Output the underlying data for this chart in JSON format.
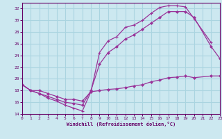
{
  "xlabel": "Windchill (Refroidissement éolien,°C)",
  "bg_color": "#cce8f0",
  "grid_color": "#aad4e0",
  "line_color": "#993399",
  "xlim": [
    0,
    23
  ],
  "ylim": [
    14,
    33
  ],
  "xticks": [
    0,
    1,
    2,
    3,
    4,
    5,
    6,
    7,
    8,
    9,
    10,
    11,
    12,
    13,
    14,
    15,
    16,
    17,
    18,
    19,
    20,
    21,
    22,
    23
  ],
  "yticks": [
    14,
    16,
    18,
    20,
    22,
    24,
    26,
    28,
    30,
    32
  ],
  "line1_x": [
    0,
    1,
    2,
    3,
    4,
    5,
    6,
    7,
    8,
    9,
    10,
    11,
    12,
    13,
    14,
    15,
    16,
    17,
    18,
    19,
    20,
    22
  ],
  "line1_y": [
    19.0,
    18.0,
    17.5,
    16.7,
    16.2,
    15.5,
    15.0,
    14.5,
    17.8,
    24.5,
    26.5,
    27.2,
    28.8,
    29.2,
    30.0,
    31.2,
    32.2,
    32.5,
    32.5,
    32.3,
    30.3,
    26.2
  ],
  "line2_x": [
    0,
    1,
    2,
    3,
    4,
    5,
    6,
    7,
    8,
    9,
    10,
    11,
    12,
    13,
    14,
    15,
    16,
    17,
    18,
    19,
    20,
    22,
    23
  ],
  "line2_y": [
    19.0,
    18.0,
    17.5,
    17.0,
    16.5,
    16.0,
    15.8,
    15.5,
    18.0,
    22.5,
    24.5,
    25.5,
    26.8,
    27.5,
    28.5,
    29.5,
    30.5,
    31.5,
    31.5,
    31.5,
    30.5,
    25.5,
    23.5
  ],
  "line3_x": [
    0,
    1,
    2,
    3,
    4,
    5,
    6,
    7,
    8,
    9,
    10,
    11,
    12,
    13,
    14,
    15,
    16,
    17,
    18,
    19,
    20,
    22,
    23
  ],
  "line3_y": [
    19.0,
    18.0,
    18.0,
    17.5,
    17.0,
    16.5,
    16.5,
    16.2,
    17.8,
    18.0,
    18.2,
    18.3,
    18.5,
    18.8,
    19.0,
    19.5,
    19.8,
    20.2,
    20.3,
    20.5,
    20.2,
    20.5,
    20.5
  ]
}
